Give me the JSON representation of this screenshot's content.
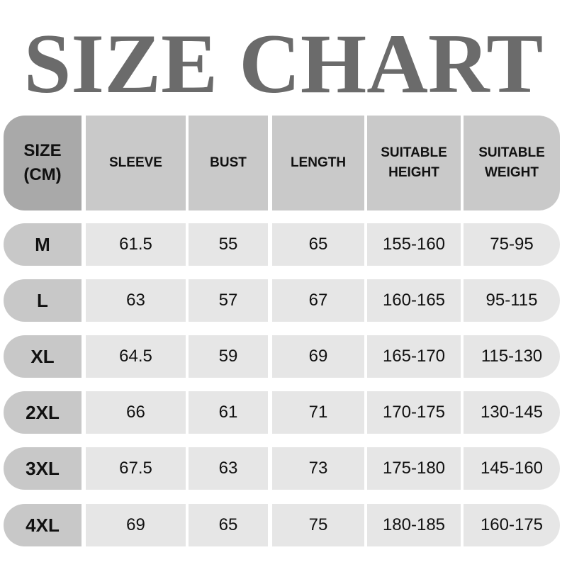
{
  "title": "SIZE CHART",
  "headers": [
    "SIZE (CM)",
    "SLEEVE",
    "BUST",
    "LENGTH",
    "SUITABLE HEIGHT",
    "SUITABLE WEIGHT"
  ],
  "rows": [
    [
      "M",
      "61.5",
      "55",
      "65",
      "155-160",
      "75-95"
    ],
    [
      "L",
      "63",
      "57",
      "67",
      "160-165",
      "95-115"
    ],
    [
      "XL",
      "64.5",
      "59",
      "69",
      "165-170",
      "115-130"
    ],
    [
      "2XL",
      "66",
      "61",
      "71",
      "170-175",
      "130-145"
    ],
    [
      "3XL",
      "67.5",
      "63",
      "73",
      "175-180",
      "145-160"
    ],
    [
      "4XL",
      "69",
      "65",
      "75",
      "180-185",
      "160-175"
    ]
  ]
}
